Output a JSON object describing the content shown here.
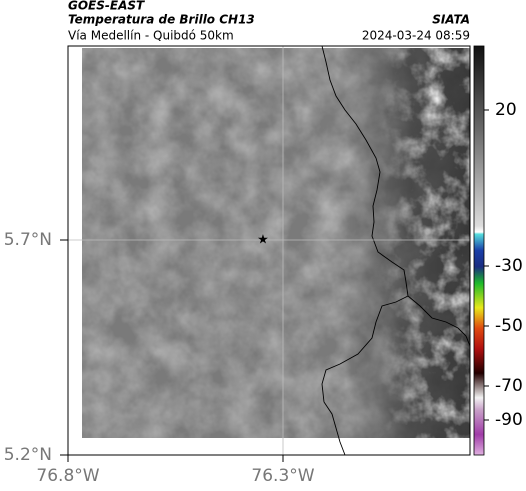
{
  "header": {
    "satellite": "GOES-EAST",
    "product": "Temperatura de Brillo CH13",
    "region": "Vía Medellín - Quibdó 50km",
    "source": "SIATA",
    "datetime": "2024-03-24 08:59"
  },
  "map": {
    "lat_ticks": [
      {
        "value": 5.7,
        "label": "5.7°N"
      },
      {
        "value": 5.2,
        "label": "5.2°N"
      }
    ],
    "lon_ticks": [
      {
        "value": -76.8,
        "label": "76.8°W"
      },
      {
        "value": -76.3,
        "label": "76.3°W"
      }
    ]
  },
  "colorbar": {
    "ticks": [
      20,
      -30,
      -50,
      -70,
      -90
    ]
  }
}
